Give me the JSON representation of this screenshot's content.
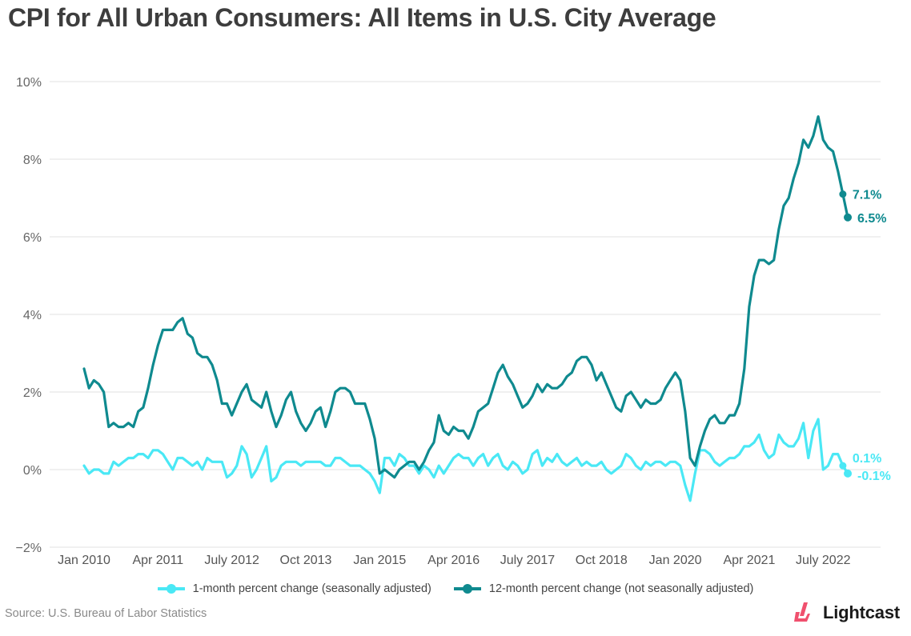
{
  "title": "CPI for All Urban Consumers: All Items in U.S. City Average",
  "source": "Source:  U.S. Bureau of Labor Statistics",
  "brand": {
    "name": "Lightcast",
    "color": "#f0506e"
  },
  "legend": [
    {
      "label": "1-month percent change (seasonally adjusted)",
      "color": "#4ae8f5"
    },
    {
      "label": "12-month percent change (not seasonally adjusted)",
      "color": "#0f8a8f"
    }
  ],
  "chart_data": {
    "type": "line",
    "title": "CPI for All Urban Consumers: All Items in U.S. City Average",
    "xlabel": "",
    "ylabel": "",
    "x_start": "Jan 2010",
    "x_end": "Dec 2022",
    "frequency": "monthly",
    "x_ticks": [
      "Jan 2010",
      "Apr 2011",
      "July 2012",
      "Oct 2013",
      "Jan 2015",
      "Apr 2016",
      "July 2017",
      "Oct 2018",
      "Jan 2020",
      "Apr 2021",
      "July 2022"
    ],
    "x_tick_month_index": [
      0,
      15,
      30,
      45,
      60,
      75,
      90,
      105,
      120,
      135,
      150
    ],
    "y_ticks": [
      "−2%",
      "0%",
      "2%",
      "4%",
      "6%",
      "8%",
      "10%"
    ],
    "y_tick_values": [
      -2,
      0,
      2,
      4,
      6,
      8,
      10
    ],
    "ylim": [
      -2,
      10
    ],
    "grid": true,
    "legend_position": "bottom",
    "series": [
      {
        "name": "1-month percent change (seasonally adjusted)",
        "color": "#4ae8f5",
        "end_labels": [
          {
            "index": 154,
            "text": "0.1%"
          },
          {
            "index": 155,
            "text": "-0.1%"
          }
        ],
        "values": [
          0.1,
          -0.1,
          0.0,
          0.0,
          -0.1,
          -0.1,
          0.2,
          0.1,
          0.2,
          0.3,
          0.3,
          0.4,
          0.4,
          0.3,
          0.5,
          0.5,
          0.4,
          0.2,
          0.0,
          0.3,
          0.3,
          0.2,
          0.1,
          0.2,
          0.0,
          0.3,
          0.2,
          0.2,
          0.2,
          -0.2,
          -0.1,
          0.1,
          0.6,
          0.4,
          -0.2,
          0.0,
          0.3,
          0.6,
          -0.3,
          -0.2,
          0.1,
          0.2,
          0.2,
          0.2,
          0.1,
          0.2,
          0.2,
          0.2,
          0.2,
          0.1,
          0.1,
          0.3,
          0.3,
          0.2,
          0.1,
          0.1,
          0.1,
          0.0,
          -0.1,
          -0.3,
          -0.6,
          0.3,
          0.3,
          0.1,
          0.4,
          0.3,
          0.1,
          0.1,
          -0.1,
          0.1,
          0.0,
          -0.2,
          0.1,
          -0.1,
          0.1,
          0.3,
          0.4,
          0.3,
          0.3,
          0.1,
          0.3,
          0.4,
          0.1,
          0.3,
          0.4,
          0.1,
          0.0,
          0.2,
          0.1,
          -0.1,
          0.0,
          0.4,
          0.5,
          0.1,
          0.3,
          0.2,
          0.4,
          0.2,
          0.1,
          0.2,
          0.3,
          0.1,
          0.2,
          0.1,
          0.1,
          0.2,
          0.0,
          -0.1,
          0.0,
          0.1,
          0.4,
          0.3,
          0.1,
          0.0,
          0.2,
          0.1,
          0.2,
          0.2,
          0.1,
          0.2,
          0.2,
          0.1,
          -0.4,
          -0.8,
          -0.1,
          0.5,
          0.5,
          0.4,
          0.2,
          0.1,
          0.2,
          0.3,
          0.3,
          0.4,
          0.6,
          0.6,
          0.7,
          0.9,
          0.5,
          0.3,
          0.4,
          0.9,
          0.7,
          0.6,
          0.6,
          0.8,
          1.2,
          0.3,
          1.0,
          1.3,
          0.0,
          0.1,
          0.4,
          0.4,
          0.1,
          -0.1
        ]
      },
      {
        "name": "12-month percent change (not seasonally adjusted)",
        "color": "#0f8a8f",
        "end_labels": [
          {
            "index": 154,
            "text": "7.1%"
          },
          {
            "index": 155,
            "text": "6.5%"
          }
        ],
        "values": [
          2.6,
          2.1,
          2.3,
          2.2,
          2.0,
          1.1,
          1.2,
          1.1,
          1.1,
          1.2,
          1.1,
          1.5,
          1.6,
          2.1,
          2.7,
          3.2,
          3.6,
          3.6,
          3.6,
          3.8,
          3.9,
          3.5,
          3.4,
          3.0,
          2.9,
          2.9,
          2.7,
          2.3,
          1.7,
          1.7,
          1.4,
          1.7,
          2.0,
          2.2,
          1.8,
          1.7,
          1.6,
          2.0,
          1.5,
          1.1,
          1.4,
          1.8,
          2.0,
          1.5,
          1.2,
          1.0,
          1.2,
          1.5,
          1.6,
          1.1,
          1.5,
          2.0,
          2.1,
          2.1,
          2.0,
          1.7,
          1.7,
          1.7,
          1.3,
          0.8,
          -0.1,
          0.0,
          -0.1,
          -0.2,
          0.0,
          0.1,
          0.2,
          0.2,
          0.0,
          0.2,
          0.5,
          0.7,
          1.4,
          1.0,
          0.9,
          1.1,
          1.0,
          1.0,
          0.8,
          1.1,
          1.5,
          1.6,
          1.7,
          2.1,
          2.5,
          2.7,
          2.4,
          2.2,
          1.9,
          1.6,
          1.7,
          1.9,
          2.2,
          2.0,
          2.2,
          2.1,
          2.1,
          2.2,
          2.4,
          2.5,
          2.8,
          2.9,
          2.9,
          2.7,
          2.3,
          2.5,
          2.2,
          1.9,
          1.6,
          1.5,
          1.9,
          2.0,
          1.8,
          1.6,
          1.8,
          1.7,
          1.7,
          1.8,
          2.1,
          2.3,
          2.5,
          2.3,
          1.5,
          0.3,
          0.1,
          0.6,
          1.0,
          1.3,
          1.4,
          1.2,
          1.2,
          1.4,
          1.4,
          1.7,
          2.6,
          4.2,
          5.0,
          5.4,
          5.4,
          5.3,
          5.4,
          6.2,
          6.8,
          7.0,
          7.5,
          7.9,
          8.5,
          8.3,
          8.6,
          9.1,
          8.5,
          8.3,
          8.2,
          7.7,
          7.1,
          6.5
        ]
      }
    ]
  }
}
